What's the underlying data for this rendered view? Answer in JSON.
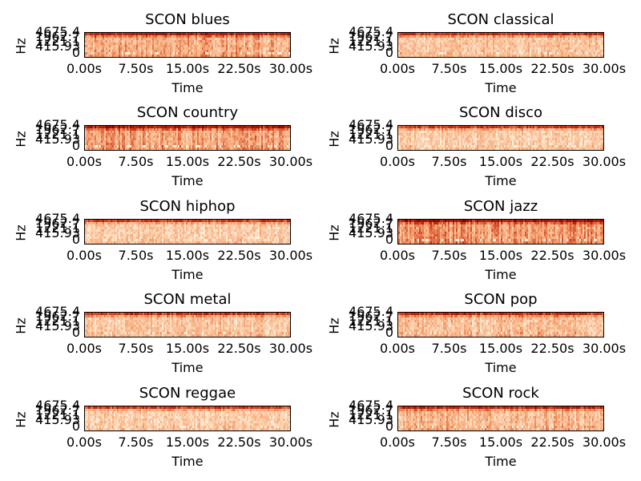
{
  "chart_data": [
    {
      "type": "heatmap",
      "title": "SCON blues",
      "xlabel": "Time",
      "ylabel": "Hz",
      "xticks": [
        "0.00s",
        "7.50s",
        "15.00s",
        "22.50s",
        "30.00s"
      ],
      "yticks": [
        "4675.4",
        "1962.7",
        "1221.1",
        "415.93",
        "0"
      ],
      "xlim": [
        0,
        30
      ],
      "colormap": "OrRd",
      "intensity": 0.55
    },
    {
      "type": "heatmap",
      "title": "SCON classical",
      "xlabel": "Time",
      "ylabel": "Hz",
      "xticks": [
        "0.00s",
        "7.50s",
        "15.00s",
        "22.50s",
        "30.00s"
      ],
      "yticks": [
        "4675.4",
        "1962.7",
        "1221.1",
        "415.93",
        "0"
      ],
      "xlim": [
        0,
        30
      ],
      "colormap": "OrRd",
      "intensity": 0.35
    },
    {
      "type": "heatmap",
      "title": "SCON country",
      "xlabel": "Time",
      "ylabel": "Hz",
      "xticks": [
        "0.00s",
        "7.50s",
        "15.00s",
        "22.50s",
        "30.00s"
      ],
      "yticks": [
        "4675.4",
        "1962.7",
        "1221.1",
        "415.93",
        "0"
      ],
      "xlim": [
        0,
        30
      ],
      "colormap": "OrRd",
      "intensity": 0.6
    },
    {
      "type": "heatmap",
      "title": "SCON disco",
      "xlabel": "Time",
      "ylabel": "Hz",
      "xticks": [
        "0.00s",
        "7.50s",
        "15.00s",
        "22.50s",
        "30.00s"
      ],
      "yticks": [
        "4675.4",
        "1962.7",
        "1221.1",
        "415.93",
        "0"
      ],
      "xlim": [
        0,
        30
      ],
      "colormap": "OrRd",
      "intensity": 0.3
    },
    {
      "type": "heatmap",
      "title": "SCON hiphop",
      "xlabel": "Time",
      "ylabel": "Hz",
      "xticks": [
        "0.00s",
        "7.50s",
        "15.00s",
        "22.50s",
        "30.00s"
      ],
      "yticks": [
        "4675.4",
        "1962.7",
        "1221.1",
        "415.93",
        "0"
      ],
      "xlim": [
        0,
        30
      ],
      "colormap": "OrRd",
      "intensity": 0.3
    },
    {
      "type": "heatmap",
      "title": "SCON jazz",
      "xlabel": "Time",
      "ylabel": "Hz",
      "xticks": [
        "0.00s",
        "7.50s",
        "15.00s",
        "22.50s",
        "30.00s"
      ],
      "yticks": [
        "4675.4",
        "1962.7",
        "1221.1",
        "415.93",
        "0"
      ],
      "xlim": [
        0,
        30
      ],
      "colormap": "OrRd",
      "intensity": 0.65
    },
    {
      "type": "heatmap",
      "title": "SCON metal",
      "xlabel": "Time",
      "ylabel": "Hz",
      "xticks": [
        "0.00s",
        "7.50s",
        "15.00s",
        "22.50s",
        "30.00s"
      ],
      "yticks": [
        "4675.4",
        "1962.7",
        "1221.1",
        "415.93",
        "0"
      ],
      "xlim": [
        0,
        30
      ],
      "colormap": "OrRd",
      "intensity": 0.35
    },
    {
      "type": "heatmap",
      "title": "SCON pop",
      "xlabel": "Time",
      "ylabel": "Hz",
      "xticks": [
        "0.00s",
        "7.50s",
        "15.00s",
        "22.50s",
        "30.00s"
      ],
      "yticks": [
        "4675.4",
        "1962.7",
        "1221.1",
        "415.93",
        "0"
      ],
      "xlim": [
        0,
        30
      ],
      "colormap": "OrRd",
      "intensity": 0.4
    },
    {
      "type": "heatmap",
      "title": "SCON reggae",
      "xlabel": "Time",
      "ylabel": "Hz",
      "xticks": [
        "0.00s",
        "7.50s",
        "15.00s",
        "22.50s",
        "30.00s"
      ],
      "yticks": [
        "4675.4",
        "1962.7",
        "1221.1",
        "415.93",
        "0"
      ],
      "xlim": [
        0,
        30
      ],
      "colormap": "OrRd",
      "intensity": 0.3
    },
    {
      "type": "heatmap",
      "title": "SCON rock",
      "xlabel": "Time",
      "ylabel": "Hz",
      "xticks": [
        "0.00s",
        "7.50s",
        "15.00s",
        "22.50s",
        "30.00s"
      ],
      "yticks": [
        "4675.4",
        "1962.7",
        "1221.1",
        "415.93",
        "0"
      ],
      "xlim": [
        0,
        30
      ],
      "colormap": "OrRd",
      "intensity": 0.45
    }
  ],
  "colors": {
    "low": "#fff1dc",
    "mid": "#f7a877",
    "high": "#c62a0d",
    "top": "#7f0000"
  }
}
